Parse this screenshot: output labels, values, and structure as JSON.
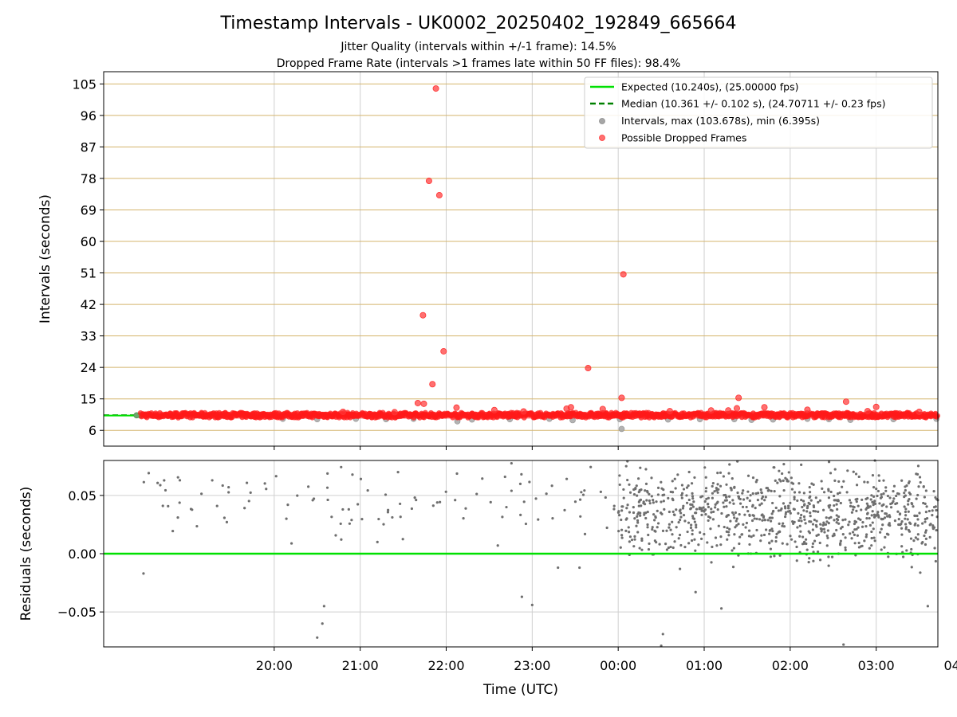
{
  "chart_data": [
    {
      "type": "scatter",
      "title": "Timestamp Intervals - UK0002_20250402_192849_665664",
      "subtitle_lines": [
        "Jitter Quality (intervals within +/-1 frame): 14.5%",
        "Dropped Frame Rate (intervals >1 frames late within 50 FF files): 98.4%"
      ],
      "ylabel": "Intervals (seconds)",
      "xlabel": "",
      "xlim": [
        -0.983,
        8.717
      ],
      "ylim": [
        1.5,
        108.5
      ],
      "yticks": [
        6,
        15,
        24,
        33,
        42,
        51,
        60,
        69,
        78,
        87,
        96,
        105
      ],
      "xticks": [
        1,
        2,
        3,
        4,
        5,
        6,
        7,
        8,
        9
      ],
      "grid": "horizontal-gold-and-vertical-gray",
      "legend_position": "top-right",
      "legend": [
        "Expected (10.240s), (25.00000 fps)",
        "Median (10.361 +/- 0.102 s), (24.70711 +/- 0.23 fps)",
        "Intervals, max (103.678s), min (6.395s)",
        "Possible Dropped Frames"
      ],
      "lines": {
        "expected": {
          "y": 10.24,
          "color": "#00e000"
        },
        "median": {
          "y": 10.361,
          "color": "#008000",
          "style": "dashed",
          "x_start": -0.983,
          "x_end": -0.55
        }
      },
      "band": {
        "x_start": -0.55,
        "x_end": 8.717,
        "y_low": 9.6,
        "y_high": 11.1,
        "color": "#ff1a1a"
      },
      "dropped_frames": {
        "color": "#ff3333",
        "points": [
          [
            2.88,
            103.7
          ],
          [
            2.8,
            77.3
          ],
          [
            2.92,
            73.2
          ],
          [
            2.73,
            38.9
          ],
          [
            2.97,
            28.6
          ],
          [
            2.84,
            19.2
          ],
          [
            2.67,
            13.8
          ],
          [
            2.74,
            13.6
          ],
          [
            3.12,
            12.5
          ],
          [
            3.56,
            11.8
          ],
          [
            4.65,
            23.8
          ],
          [
            5.04,
            15.3
          ],
          [
            5.06,
            50.6
          ],
          [
            4.45,
            12.6
          ],
          [
            4.4,
            12.2
          ],
          [
            4.82,
            12.1
          ],
          [
            6.4,
            15.3
          ],
          [
            6.38,
            12.3
          ],
          [
            6.28,
            11.7
          ],
          [
            6.7,
            12.6
          ],
          [
            7.65,
            14.2
          ],
          [
            8.0,
            12.7
          ],
          [
            8.78,
            12.5
          ],
          [
            8.85,
            12.8
          ],
          [
            8.72,
            12.8
          ],
          [
            8.88,
            12.4
          ],
          [
            9.08,
            12.9
          ],
          [
            9.18,
            12.4
          ],
          [
            9.38,
            13.9
          ],
          [
            9.45,
            12.7
          ],
          [
            9.57,
            12.7
          ],
          [
            9.62,
            11.6
          ],
          [
            6.08,
            11.7
          ],
          [
            7.2,
            11.9
          ],
          [
            5.6,
            11.5
          ],
          [
            1.8,
            11.3
          ],
          [
            2.4,
            11.2
          ],
          [
            3.9,
            11.4
          ],
          [
            7.9,
            11.5
          ],
          [
            8.5,
            11.3
          ]
        ]
      },
      "intervals": {
        "color": "#a6a6a6",
        "points": [
          [
            5.04,
            6.4
          ],
          [
            3.13,
            8.6
          ],
          [
            4.47,
            8.9
          ],
          [
            5.02,
            9.2
          ],
          [
            2.62,
            9.3
          ],
          [
            3.3,
            9.1
          ],
          [
            3.74,
            9.2
          ],
          [
            4.2,
            9.3
          ],
          [
            5.58,
            9.1
          ],
          [
            6.35,
            9.2
          ],
          [
            6.8,
            9.1
          ],
          [
            7.2,
            9.3
          ],
          [
            7.7,
            9.0
          ],
          [
            8.2,
            9.2
          ],
          [
            8.7,
            9.3
          ],
          [
            9.2,
            9.1
          ],
          [
            9.53,
            9.0
          ],
          [
            1.1,
            9.3
          ],
          [
            1.5,
            9.2
          ],
          [
            1.95,
            9.3
          ],
          [
            2.3,
            9.2
          ],
          [
            5.95,
            9.2
          ],
          [
            6.55,
            9.0
          ],
          [
            7.45,
            9.2
          ]
        ]
      }
    },
    {
      "type": "scatter",
      "title": "",
      "xlabel": "Time (UTC)",
      "ylabel": "Residuals (seconds)",
      "xlim": [
        -0.983,
        8.717
      ],
      "ylim": [
        -0.08,
        0.08
      ],
      "yticks": [
        -0.05,
        0.0,
        0.05
      ],
      "ytick_labels": [
        "−0.05",
        "0.00",
        "0.05"
      ],
      "xticks": [
        1,
        2,
        3,
        4,
        5,
        6,
        7,
        8,
        9
      ],
      "xtick_labels": [
        "20:00",
        "21:00",
        "22:00",
        "23:00",
        "00:00",
        "01:00",
        "02:00",
        "03:00",
        "04:00"
      ],
      "grid": "both-gray",
      "zero_line_color": "#00e000",
      "points_color": "#6e6e6e",
      "residual_cloud": {
        "segments": [
          {
            "x_start": -0.55,
            "x_end": 5.0,
            "count": 110,
            "mean": 0.045,
            "spread": 0.03
          },
          {
            "x_start": 5.0,
            "x_end": 8.717,
            "count": 900,
            "mean": 0.035,
            "spread": 0.035
          }
        ],
        "outliers": [
          [
            -0.52,
            -0.017
          ],
          [
            1.5,
            -0.072
          ],
          [
            1.58,
            -0.045
          ],
          [
            1.56,
            -0.06
          ],
          [
            3.88,
            -0.037
          ],
          [
            4.0,
            -0.044
          ],
          [
            4.3,
            -0.012
          ],
          [
            4.55,
            -0.012
          ],
          [
            5.52,
            -0.069
          ],
          [
            5.5,
            -0.079
          ],
          [
            6.2,
            -0.047
          ],
          [
            5.9,
            -0.033
          ],
          [
            7.62,
            -0.078
          ],
          [
            8.6,
            -0.045
          ],
          [
            2.2,
            0.01
          ],
          [
            3.6,
            0.007
          ]
        ]
      }
    }
  ]
}
